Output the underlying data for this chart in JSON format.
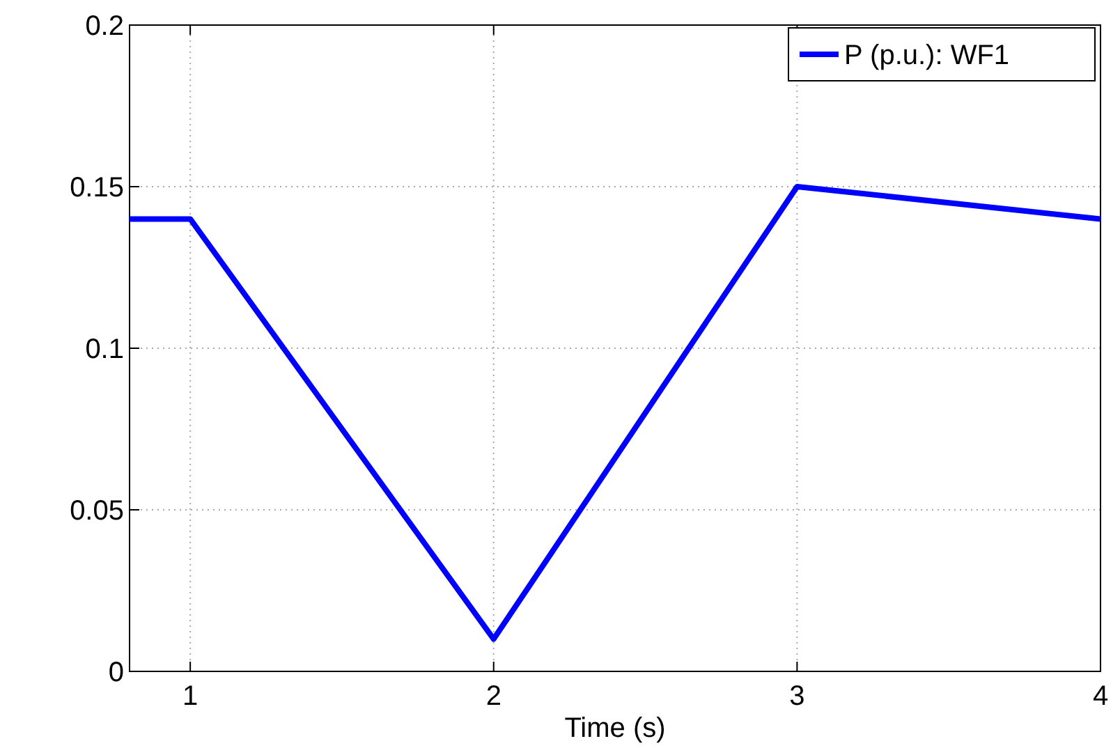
{
  "chart_data": {
    "type": "line",
    "xlabel": "Time (s)",
    "x": [
      0.8,
      1,
      2,
      3,
      4
    ],
    "series": [
      {
        "name": "P (p.u.): WF1",
        "color": "#0000ff",
        "values": [
          0.14,
          0.14,
          0.01,
          0.15,
          0.14
        ]
      }
    ],
    "xlim": [
      0.8,
      4
    ],
    "xticks": [
      1,
      2,
      3,
      4
    ],
    "ylim": [
      0,
      0.2
    ],
    "yticks": [
      0,
      0.05,
      0.1,
      0.15,
      0.2
    ],
    "grid": true,
    "legend": "top right",
    "line_style": "solid"
  }
}
